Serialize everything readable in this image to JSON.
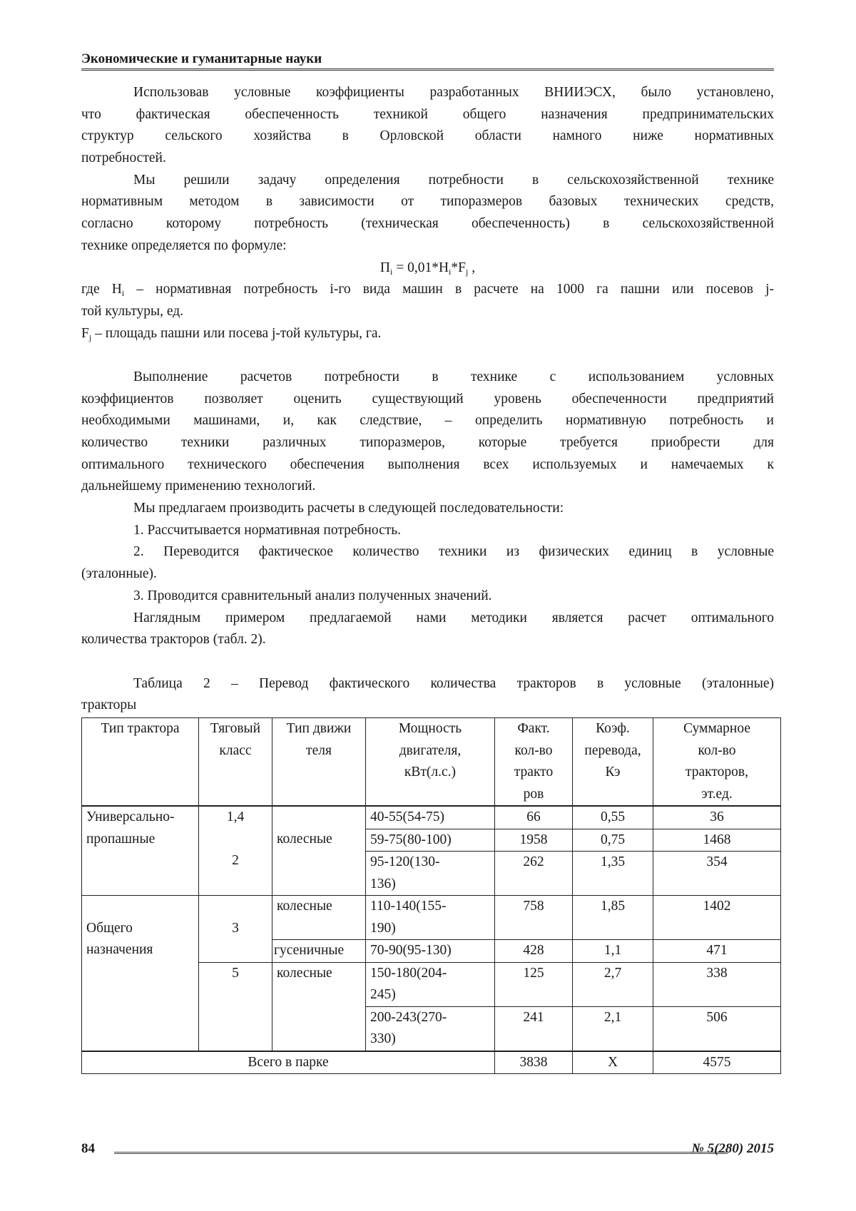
{
  "header": {
    "section": "Экономические и гуманитарные науки"
  },
  "body": {
    "p1": [
      "Использовав условные коэффициенты разработанных ВНИИЭСХ, было установлено,",
      "что фактическая обеспеченность техникой общего назначения предпринимательских",
      "структур сельского хозяйства в Орловской области намного ниже нормативных",
      "потребностей."
    ],
    "p2": [
      "Мы решили задачу определения потребности в сельскохозяйственной технике",
      "нормативным методом в зависимости от типоразмеров базовых технических средств,",
      "согласно которому потребность (техническая обеспеченность) в сельскохозяйственной",
      "технике определяется по формуле:"
    ],
    "formula": {
      "a": "П",
      "a_sub": "i",
      "b": " = 0,01*H",
      "b_sub": "i",
      "c": "*F",
      "c_sub": "j",
      "d": " ,"
    },
    "where1": {
      "a": "где H",
      "a_sub": "i",
      "b": " – нормативная потребность i-го вида машин в расчете на 1000 га пашни или посевов j-",
      "line2": "той культуры, ед."
    },
    "where2": {
      "a": "F",
      "a_sub": "j",
      "b": " – площадь пашни или посева j-той культуры, га."
    },
    "p3": [
      "Выполнение расчетов потребности в технике с использованием условных",
      "коэффициентов позволяет оценить существующий уровень обеспеченности предприятий",
      "необходимыми машинами, и, как следствие, – определить нормативную потребность и",
      "количество техники различных типоразмеров, которые требуется приобрести для",
      "оптимального технического обеспечения выполнения всех используемых и намечаемых к",
      "дальнейшему применению технологий."
    ],
    "p4": [
      "Мы предлагаем производить расчеты в следующей последовательности:"
    ],
    "p5": [
      "1. Рассчитывается нормативная потребность."
    ],
    "p6": [
      "2. Переводится фактическое количество техники из физических единиц в условные",
      "(эталонные)."
    ],
    "p7": [
      "3. Проводится сравнительный анализ полученных значений."
    ],
    "p8": [
      "Наглядным примером предлагаемой нами методики является  расчет оптимального",
      "количества тракторов (табл. 2)."
    ],
    "caption": [
      "Таблица 2 – Перевод фактического количества тракторов в условные (эталонные)",
      "тракторы"
    ]
  },
  "table": {
    "headers": [
      [
        "Тип трактора"
      ],
      [
        "Тяговый",
        "класс"
      ],
      [
        "Тип движи",
        "теля"
      ],
      [
        "Мощность",
        "двигателя,",
        "кВт(л.с.)"
      ],
      [
        "Факт.",
        "кол-во",
        "тракто",
        "ров"
      ],
      [
        "Коэф.",
        "перевода,",
        "Кэ"
      ],
      [
        "Суммарное",
        "кол-во",
        "тракторов,",
        "эт.ед."
      ]
    ],
    "group1": {
      "type": [
        "Универсально-",
        "пропашные"
      ],
      "class_a": "1,4",
      "class_b": "2",
      "drive": "колесные"
    },
    "group2": {
      "type": [
        "Общего",
        "назначения"
      ],
      "class_a": "3",
      "class_b": "5",
      "drive_a": "колесные",
      "drive_b": "гусеничные",
      "drive_c": "колесные"
    },
    "rows": [
      {
        "power": [
          "40-55(54-75)"
        ],
        "fact": "66",
        "coef": "0,55",
        "sum": "36"
      },
      {
        "power": [
          "59-75(80-100)"
        ],
        "fact": "1958",
        "coef": "0,75",
        "sum": "1468"
      },
      {
        "power": [
          "95-120(130-",
          "136)"
        ],
        "fact": "262",
        "coef": "1,35",
        "sum": "354"
      },
      {
        "power": [
          "110-140(155-",
          "190)"
        ],
        "fact": "758",
        "coef": "1,85",
        "sum": "1402"
      },
      {
        "power": [
          "70-90(95-130)"
        ],
        "fact": "428",
        "coef": "1,1",
        "sum": "471"
      },
      {
        "power": [
          "150-180(204-",
          "245)"
        ],
        "fact": "125",
        "coef": "2,7",
        "sum": "338"
      },
      {
        "power": [
          "200-243(270-",
          "330)"
        ],
        "fact": "241",
        "coef": "2,1",
        "sum": "506"
      }
    ],
    "total": {
      "label": "Всего в парке",
      "fact": "3838",
      "coef": "X",
      "sum": "4575"
    }
  },
  "footer": {
    "page": "84",
    "issue": "№ 5(280) 2015"
  }
}
